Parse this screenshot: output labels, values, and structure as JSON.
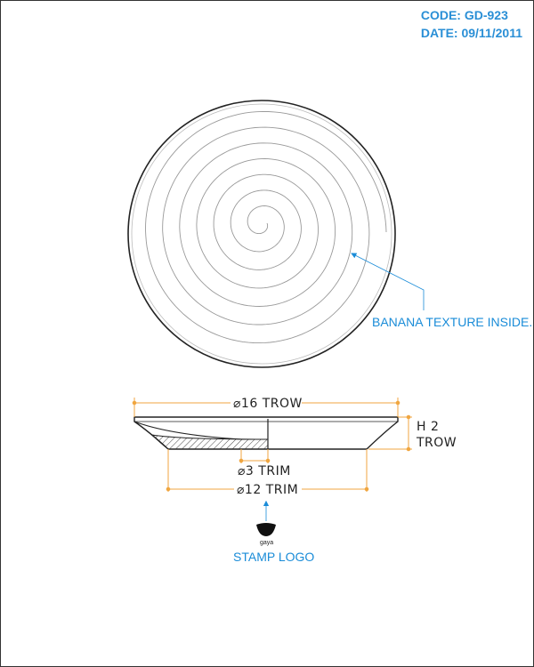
{
  "header": {
    "code": "CODE: GD-923",
    "date": "DATE: 09/11/2011"
  },
  "callouts": {
    "texture": "BANANA TEXTURE INSIDE.",
    "stamp": "STAMP LOGO",
    "logo_text": "gaya"
  },
  "dimensions": {
    "top_diameter": "⌀16 TROW",
    "height_line1": "H 2",
    "height_line2": "TROW",
    "inner_diameter": "⌀3 TRIM",
    "base_diameter": "⌀12 TRIM"
  },
  "colors": {
    "callout": "#1a8cd8",
    "dimension_line": "#f0a640",
    "outline": "#222222",
    "spiral": "#999999"
  }
}
